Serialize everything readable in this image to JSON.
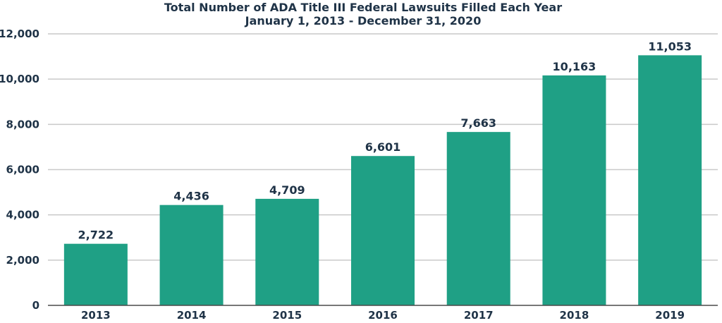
{
  "chart_data": {
    "type": "bar",
    "title": "Total Number of ADA Title III Federal Lawsuits Filled Each Year",
    "subtitle": "January 1, 2013 - December 31, 2020",
    "xlabel": "",
    "ylabel": "",
    "categories": [
      "2013",
      "2014",
      "2015",
      "2016",
      "2017",
      "2018",
      "2019"
    ],
    "values": [
      2722,
      4436,
      4709,
      6601,
      7663,
      10163,
      11053
    ],
    "value_labels": [
      "2,722",
      "4,436",
      "4,709",
      "6,601",
      "7,663",
      "10,163",
      "11,053"
    ],
    "ylim": [
      0,
      12000
    ],
    "yticks": [
      0,
      2000,
      4000,
      6000,
      8000,
      10000,
      12000
    ],
    "ytick_labels": [
      "0",
      "2,000",
      "4,000",
      "6,000",
      "8,000",
      "10,000",
      "12,000"
    ],
    "grid": true,
    "legend": "none",
    "bar_color": "#1fa085"
  }
}
